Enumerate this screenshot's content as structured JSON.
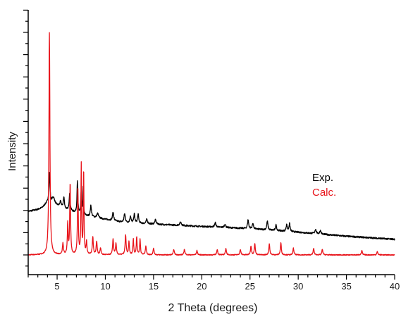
{
  "chart_data": {
    "type": "line",
    "title": "",
    "xlabel": "2 Theta (degrees)",
    "ylabel": "Intensity",
    "xlim": [
      2,
      40
    ],
    "ylim": [
      0,
      100
    ],
    "x_ticks": [
      5,
      10,
      15,
      20,
      25,
      30,
      35,
      40
    ],
    "y_tick_labels": false,
    "grid": false,
    "legend": {
      "placement": "right-middle"
    },
    "colors": {
      "exp": "#000000",
      "calc": "#e8141b"
    },
    "series": [
      {
        "name": "Exp.",
        "color": "#000000",
        "baseline": [
          [
            2,
            19.5
          ],
          [
            5,
            21.5
          ],
          [
            8,
            17.5
          ],
          [
            12,
            14.5
          ],
          [
            18,
            13.2
          ],
          [
            25,
            11.8
          ],
          [
            30,
            10.2
          ],
          [
            35,
            8.4
          ],
          [
            40,
            7.0
          ]
        ],
        "noise": 0.35,
        "peaks": [
          [
            3.9,
            2.0,
            0.35
          ],
          [
            4.2,
            14.0,
            0.07
          ],
          [
            4.6,
            4.0,
            0.2
          ],
          [
            5.35,
            2.5,
            0.1
          ],
          [
            5.7,
            5.0,
            0.07
          ],
          [
            6.3,
            8.0,
            0.06
          ],
          [
            7.1,
            14.0,
            0.05
          ],
          [
            7.5,
            10.0,
            0.05
          ],
          [
            7.7,
            12.0,
            0.04
          ],
          [
            8.5,
            5.0,
            0.07
          ],
          [
            9.2,
            2.0,
            0.1
          ],
          [
            10.8,
            4.0,
            0.07
          ],
          [
            12.0,
            4.0,
            0.08
          ],
          [
            12.6,
            3.0,
            0.07
          ],
          [
            13.0,
            4.0,
            0.07
          ],
          [
            13.4,
            4.0,
            0.07
          ],
          [
            14.3,
            2.0,
            0.08
          ],
          [
            15.2,
            2.0,
            0.08
          ],
          [
            17.8,
            1.5,
            0.1
          ],
          [
            21.4,
            2.0,
            0.08
          ],
          [
            22.4,
            1.5,
            0.08
          ],
          [
            24.8,
            4.0,
            0.07
          ],
          [
            25.3,
            2.5,
            0.07
          ],
          [
            26.8,
            4.0,
            0.07
          ],
          [
            27.7,
            2.5,
            0.07
          ],
          [
            28.8,
            3.0,
            0.07
          ],
          [
            29.1,
            3.5,
            0.07
          ],
          [
            31.8,
            2.0,
            0.08
          ],
          [
            32.3,
            1.5,
            0.08
          ]
        ]
      },
      {
        "name": "Calc.",
        "color": "#e8141b",
        "baseline": [
          [
            2,
            0.0
          ],
          [
            40,
            0.0
          ]
        ],
        "noise": 0.2,
        "peaks": [
          [
            4.2,
            100.0,
            0.06
          ],
          [
            5.6,
            5.0,
            0.06
          ],
          [
            6.1,
            14.0,
            0.05
          ],
          [
            6.35,
            32.0,
            0.05
          ],
          [
            7.15,
            30.0,
            0.05
          ],
          [
            7.5,
            40.0,
            0.04
          ],
          [
            7.75,
            38.0,
            0.04
          ],
          [
            8.05,
            6.0,
            0.05
          ],
          [
            8.7,
            8.0,
            0.06
          ],
          [
            9.1,
            6.0,
            0.06
          ],
          [
            9.5,
            3.0,
            0.06
          ],
          [
            10.8,
            7.0,
            0.06
          ],
          [
            11.1,
            5.0,
            0.06
          ],
          [
            12.1,
            9.0,
            0.06
          ],
          [
            12.45,
            6.0,
            0.05
          ],
          [
            12.9,
            7.0,
            0.05
          ],
          [
            13.25,
            8.0,
            0.05
          ],
          [
            13.6,
            7.0,
            0.05
          ],
          [
            14.2,
            4.0,
            0.06
          ],
          [
            15.0,
            3.0,
            0.06
          ],
          [
            17.1,
            2.5,
            0.06
          ],
          [
            18.2,
            2.5,
            0.06
          ],
          [
            19.5,
            2.0,
            0.06
          ],
          [
            21.6,
            2.5,
            0.06
          ],
          [
            22.5,
            3.0,
            0.06
          ],
          [
            24.0,
            2.5,
            0.06
          ],
          [
            25.1,
            4.0,
            0.06
          ],
          [
            25.5,
            5.0,
            0.06
          ],
          [
            27.0,
            5.0,
            0.06
          ],
          [
            28.2,
            5.5,
            0.06
          ],
          [
            29.5,
            3.0,
            0.06
          ],
          [
            31.6,
            3.0,
            0.06
          ],
          [
            32.5,
            2.5,
            0.06
          ],
          [
            36.6,
            2.0,
            0.06
          ],
          [
            38.2,
            1.5,
            0.06
          ]
        ]
      }
    ],
    "legend_entries": [
      {
        "label": "Exp.",
        "color": "#000000"
      },
      {
        "label": "Calc.",
        "color": "#e8141b"
      }
    ]
  }
}
